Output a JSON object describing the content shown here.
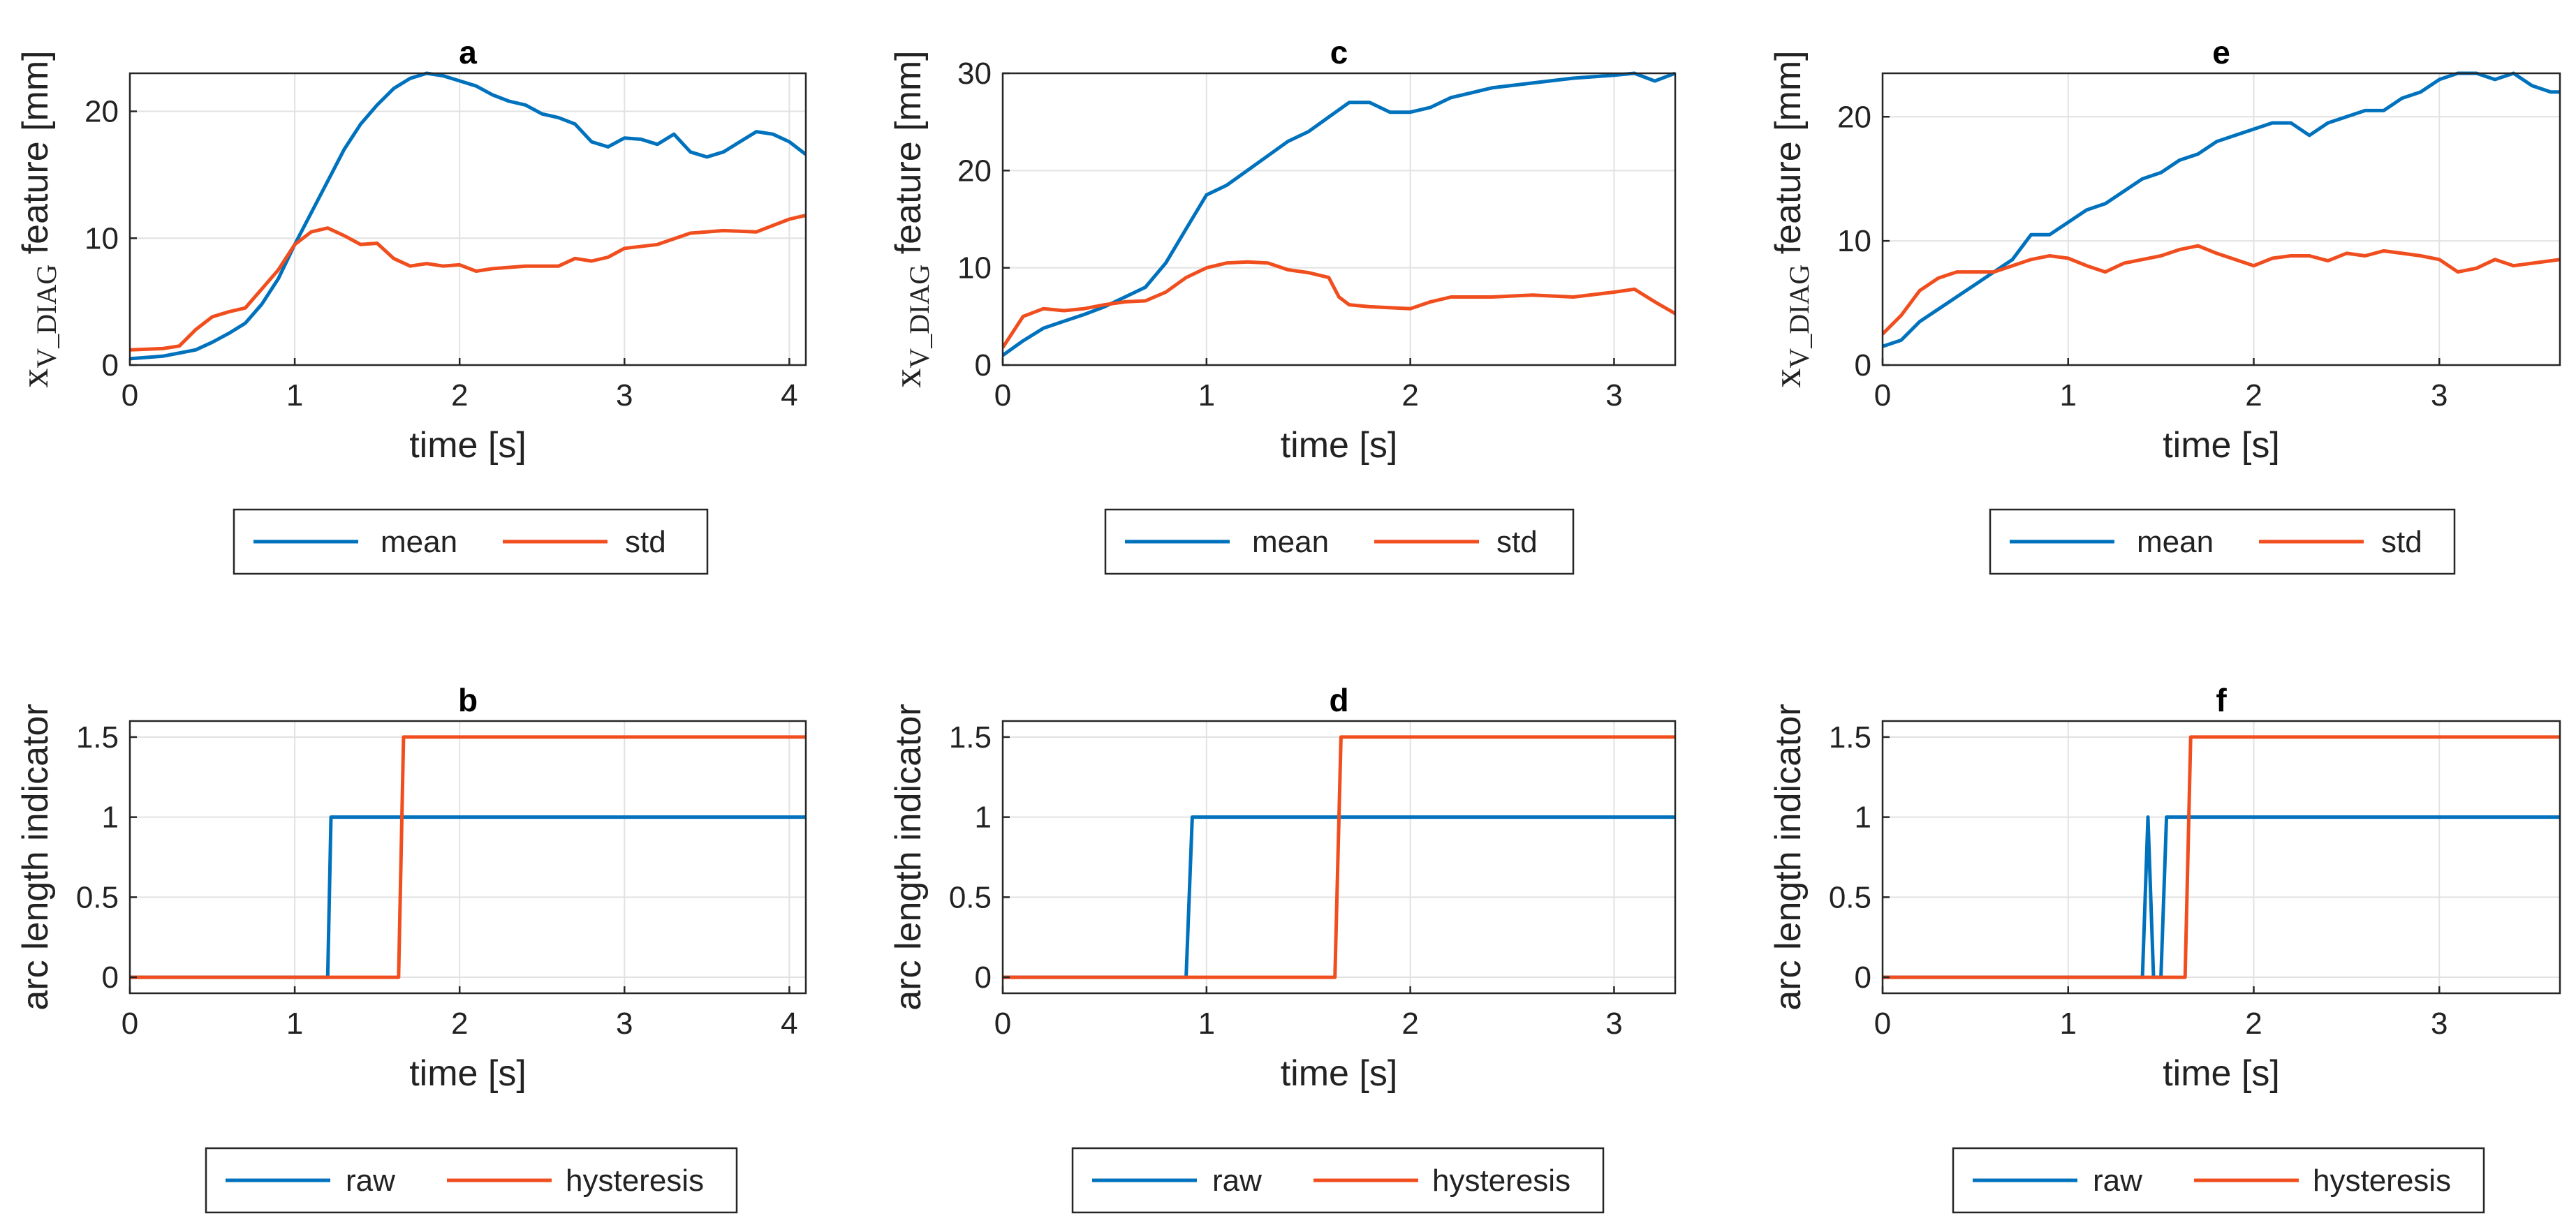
{
  "colors": {
    "blue": "#0072BD",
    "orange": "#F04E1E",
    "grid": "#e2e2e2",
    "axis": "#262626"
  },
  "chart_data": [
    {
      "id": "a",
      "type": "line",
      "title": "a",
      "xlabel": "time [s]",
      "ylabel_main": "x",
      "ylabel_sub": "V_DIAG",
      "ylabel_rest": " feature [mm]",
      "xlim": [
        0,
        4.1
      ],
      "ylim": [
        0,
        23
      ],
      "xticks": [
        0,
        1,
        2,
        3,
        4
      ],
      "yticks": [
        0,
        10,
        20
      ],
      "legend": [
        "mean",
        "std"
      ],
      "series": [
        {
          "name": "mean",
          "color": "blue",
          "x": [
            0,
            0.2,
            0.4,
            0.5,
            0.6,
            0.7,
            0.8,
            0.9,
            1.0,
            1.1,
            1.2,
            1.3,
            1.4,
            1.5,
            1.6,
            1.7,
            1.8,
            1.9,
            2.0,
            2.1,
            2.2,
            2.3,
            2.4,
            2.5,
            2.6,
            2.7,
            2.8,
            2.9,
            3.0,
            3.1,
            3.2,
            3.3,
            3.4,
            3.5,
            3.6,
            3.7,
            3.8,
            3.9,
            4.0,
            4.1
          ],
          "y": [
            0.5,
            0.7,
            1.2,
            1.8,
            2.5,
            3.3,
            4.8,
            6.8,
            9.5,
            12.0,
            14.5,
            17.0,
            19.0,
            20.5,
            21.8,
            22.6,
            23.0,
            22.8,
            22.4,
            22.0,
            21.3,
            20.8,
            20.5,
            19.8,
            19.5,
            19.0,
            17.6,
            17.2,
            17.9,
            17.8,
            17.4,
            18.2,
            16.8,
            16.4,
            16.8,
            17.6,
            18.4,
            18.2,
            17.6,
            16.6
          ]
        },
        {
          "name": "std",
          "color": "orange",
          "x": [
            0,
            0.2,
            0.3,
            0.4,
            0.5,
            0.6,
            0.7,
            0.8,
            0.9,
            1.0,
            1.1,
            1.2,
            1.3,
            1.4,
            1.5,
            1.6,
            1.7,
            1.8,
            1.9,
            2.0,
            2.1,
            2.2,
            2.4,
            2.6,
            2.7,
            2.8,
            2.9,
            3.0,
            3.2,
            3.4,
            3.6,
            3.8,
            4.0,
            4.1
          ],
          "y": [
            1.2,
            1.3,
            1.5,
            2.8,
            3.8,
            4.2,
            4.5,
            6.0,
            7.5,
            9.5,
            10.5,
            10.8,
            10.2,
            9.5,
            9.6,
            8.4,
            7.8,
            8.0,
            7.8,
            7.9,
            7.4,
            7.6,
            7.8,
            7.8,
            8.4,
            8.2,
            8.5,
            9.2,
            9.5,
            10.4,
            10.6,
            10.5,
            11.5,
            11.8
          ]
        }
      ]
    },
    {
      "id": "c",
      "type": "line",
      "title": "c",
      "xlabel": "time [s]",
      "ylabel_main": "x",
      "ylabel_sub": "V_DIAG",
      "ylabel_rest": " feature [mm]",
      "xlim": [
        0,
        3.3
      ],
      "ylim": [
        0,
        30
      ],
      "xticks": [
        0,
        1,
        2,
        3
      ],
      "yticks": [
        0,
        10,
        20,
        30
      ],
      "legend": [
        "mean",
        "std"
      ],
      "series": [
        {
          "name": "mean",
          "color": "blue",
          "x": [
            0,
            0.1,
            0.2,
            0.3,
            0.4,
            0.5,
            0.6,
            0.7,
            0.8,
            0.9,
            1.0,
            1.1,
            1.2,
            1.3,
            1.4,
            1.5,
            1.6,
            1.7,
            1.8,
            1.9,
            2.0,
            2.1,
            2.2,
            2.3,
            2.4,
            2.6,
            2.8,
            3.0,
            3.1,
            3.2,
            3.3
          ],
          "y": [
            1.0,
            2.5,
            3.8,
            4.5,
            5.2,
            6.0,
            7.0,
            8.0,
            10.5,
            14.0,
            17.5,
            18.5,
            20.0,
            21.5,
            23.0,
            24.0,
            25.5,
            27.0,
            27.0,
            26.0,
            26.0,
            26.5,
            27.5,
            28.0,
            28.5,
            29.0,
            29.5,
            29.8,
            30.0,
            29.2,
            30.0
          ]
        },
        {
          "name": "std",
          "color": "orange",
          "x": [
            0,
            0.1,
            0.2,
            0.3,
            0.4,
            0.5,
            0.6,
            0.7,
            0.8,
            0.9,
            1.0,
            1.1,
            1.2,
            1.3,
            1.4,
            1.5,
            1.6,
            1.65,
            1.7,
            1.8,
            2.0,
            2.1,
            2.2,
            2.4,
            2.6,
            2.8,
            3.0,
            3.1,
            3.2,
            3.3
          ],
          "y": [
            1.8,
            5.0,
            5.8,
            5.6,
            5.8,
            6.2,
            6.5,
            6.6,
            7.5,
            9.0,
            10.0,
            10.5,
            10.6,
            10.5,
            9.8,
            9.5,
            9.0,
            7.0,
            6.2,
            6.0,
            5.8,
            6.5,
            7.0,
            7.0,
            7.2,
            7.0,
            7.5,
            7.8,
            6.5,
            5.3
          ]
        }
      ]
    },
    {
      "id": "e",
      "type": "line",
      "title": "e",
      "xlabel": "time [s]",
      "ylabel_main": "x",
      "ylabel_sub": "V_DIAG",
      "ylabel_rest": " feature [mm]",
      "xlim": [
        0,
        3.65
      ],
      "ylim": [
        0,
        23.5
      ],
      "xticks": [
        0,
        1,
        2,
        3
      ],
      "yticks": [
        0,
        10,
        20
      ],
      "legend": [
        "mean",
        "std"
      ],
      "series": [
        {
          "name": "mean",
          "color": "blue",
          "x": [
            0,
            0.1,
            0.2,
            0.3,
            0.4,
            0.5,
            0.6,
            0.7,
            0.8,
            0.9,
            1.0,
            1.1,
            1.2,
            1.3,
            1.4,
            1.5,
            1.6,
            1.7,
            1.8,
            1.9,
            2.0,
            2.1,
            2.2,
            2.3,
            2.4,
            2.5,
            2.6,
            2.7,
            2.8,
            2.9,
            3.0,
            3.1,
            3.2,
            3.3,
            3.4,
            3.5,
            3.6,
            3.65
          ],
          "y": [
            1.5,
            2.0,
            3.5,
            4.5,
            5.5,
            6.5,
            7.5,
            8.5,
            10.5,
            10.5,
            11.5,
            12.5,
            13.0,
            14.0,
            15.0,
            15.5,
            16.5,
            17.0,
            18.0,
            18.5,
            19.0,
            19.5,
            19.5,
            18.5,
            19.5,
            20.0,
            20.5,
            20.5,
            21.5,
            22.0,
            23.0,
            23.5,
            23.5,
            23.0,
            23.5,
            22.5,
            22.0,
            22.0
          ]
        },
        {
          "name": "std",
          "color": "orange",
          "x": [
            0,
            0.1,
            0.2,
            0.3,
            0.4,
            0.5,
            0.6,
            0.7,
            0.8,
            0.9,
            1.0,
            1.1,
            1.2,
            1.3,
            1.4,
            1.5,
            1.6,
            1.7,
            1.8,
            1.9,
            2.0,
            2.1,
            2.2,
            2.3,
            2.4,
            2.5,
            2.6,
            2.7,
            2.8,
            2.9,
            3.0,
            3.1,
            3.2,
            3.3,
            3.4,
            3.5,
            3.6,
            3.65
          ],
          "y": [
            2.5,
            4.0,
            6.0,
            7.0,
            7.5,
            7.5,
            7.5,
            8.0,
            8.5,
            8.8,
            8.6,
            8.0,
            7.5,
            8.2,
            8.5,
            8.8,
            9.3,
            9.6,
            9.0,
            8.5,
            8.0,
            8.6,
            8.8,
            8.8,
            8.4,
            9.0,
            8.8,
            9.2,
            9.0,
            8.8,
            8.5,
            7.5,
            7.8,
            8.5,
            8.0,
            8.2,
            8.4,
            8.5
          ]
        }
      ]
    },
    {
      "id": "b",
      "type": "line",
      "title": "b",
      "xlabel": "time [s]",
      "ylabel": "arc length indicator",
      "xlim": [
        0,
        4.1
      ],
      "ylim": [
        -0.1,
        1.6
      ],
      "xticks": [
        0,
        1,
        2,
        3,
        4
      ],
      "yticks": [
        0,
        0.5,
        1,
        1.5
      ],
      "yticklabels": [
        "0",
        "0.5",
        "1",
        "1.5"
      ],
      "legend": [
        "raw",
        "hysteresis"
      ],
      "series": [
        {
          "name": "raw",
          "color": "blue",
          "x": [
            0,
            1.2,
            1.22,
            4.1
          ],
          "y": [
            0,
            0,
            1,
            1
          ]
        },
        {
          "name": "hysteresis",
          "color": "orange",
          "x": [
            0,
            1.63,
            1.66,
            4.1
          ],
          "y": [
            0,
            0,
            1.5,
            1.5
          ]
        }
      ]
    },
    {
      "id": "d",
      "type": "line",
      "title": "d",
      "xlabel": "time [s]",
      "ylabel": "arc length indicator",
      "xlim": [
        0,
        3.3
      ],
      "ylim": [
        -0.1,
        1.6
      ],
      "xticks": [
        0,
        1,
        2,
        3
      ],
      "yticks": [
        0,
        0.5,
        1,
        1.5
      ],
      "yticklabels": [
        "0",
        "0.5",
        "1",
        "1.5"
      ],
      "legend": [
        "raw",
        "hysteresis"
      ],
      "series": [
        {
          "name": "raw",
          "color": "blue",
          "x": [
            0,
            0.9,
            0.93,
            3.3
          ],
          "y": [
            0,
            0,
            1,
            1
          ]
        },
        {
          "name": "hysteresis",
          "color": "orange",
          "x": [
            0,
            1.63,
            1.66,
            3.3
          ],
          "y": [
            0,
            0,
            1.5,
            1.5
          ]
        }
      ]
    },
    {
      "id": "f",
      "type": "line",
      "title": "f",
      "xlabel": "time [s]",
      "ylabel": "arc length indicator",
      "xlim": [
        0,
        3.65
      ],
      "ylim": [
        -0.1,
        1.6
      ],
      "xticks": [
        0,
        1,
        2,
        3
      ],
      "yticks": [
        0,
        0.5,
        1,
        1.5
      ],
      "yticklabels": [
        "0",
        "0.5",
        "1",
        "1.5"
      ],
      "legend": [
        "raw",
        "hysteresis"
      ],
      "series": [
        {
          "name": "raw",
          "color": "blue",
          "x": [
            0,
            1.4,
            1.43,
            1.46,
            1.5,
            1.53,
            3.65
          ],
          "y": [
            0,
            0,
            1,
            0,
            0,
            1,
            1
          ]
        },
        {
          "name": "hysteresis",
          "color": "orange",
          "x": [
            0,
            1.63,
            1.66,
            3.65
          ],
          "y": [
            0,
            0,
            1.5,
            1.5
          ]
        }
      ]
    }
  ]
}
